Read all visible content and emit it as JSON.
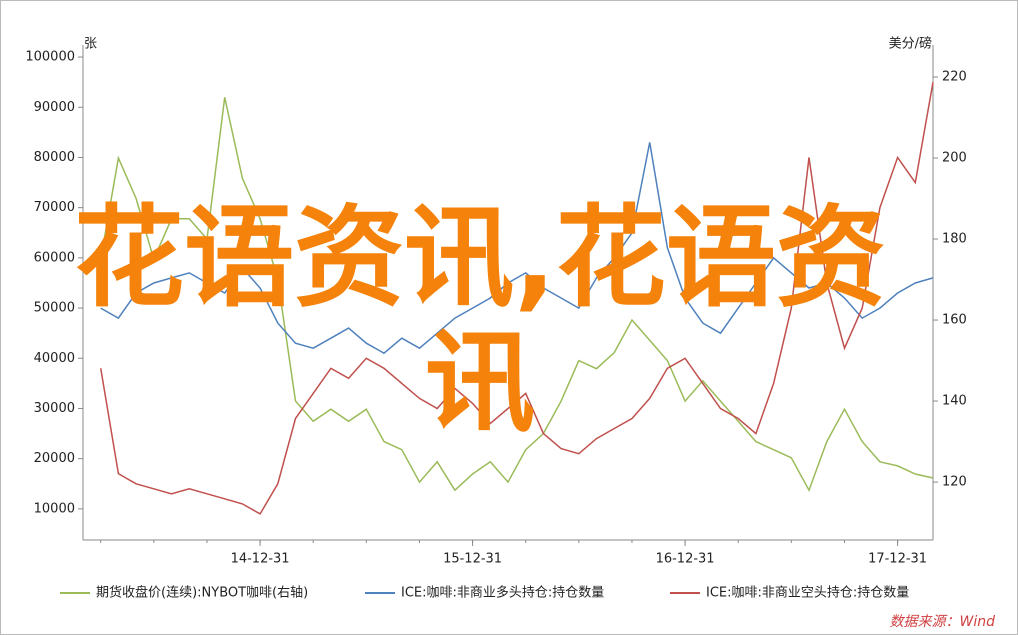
{
  "chart_data": {
    "type": "line",
    "watermark": "花语资讯,花语资讯",
    "y_label": "张",
    "y2_label": "美分/磅",
    "source": "数据来源：Wind",
    "categories": [
      null,
      null,
      null,
      null,
      null,
      null,
      null,
      null,
      null,
      "14-12-31",
      null,
      null,
      null,
      null,
      null,
      null,
      null,
      null,
      null,
      null,
      null,
      "15-12-31",
      null,
      null,
      null,
      null,
      null,
      null,
      null,
      null,
      null,
      null,
      null,
      "16-12-31",
      null,
      null,
      null,
      null,
      null,
      null,
      null,
      null,
      null,
      null,
      null,
      "17-12-31",
      null,
      null
    ],
    "ylim": [
      3800,
      102400
    ],
    "yticks": [
      10000,
      20000,
      30000,
      40000,
      50000,
      60000,
      70000,
      80000,
      90000,
      100000
    ],
    "y2lim": [
      105.7,
      227.9
    ],
    "y2ticks": [
      120,
      140,
      160,
      180,
      200,
      220
    ],
    "series": [
      {
        "name": "期货收盘价(连续):NYBOT咖啡(右轴)",
        "color": "#9bbb59",
        "axis": "y2",
        "values": [
          175,
          200,
          190,
          175,
          185,
          185,
          180,
          215,
          195,
          185,
          170,
          140,
          135,
          138,
          135,
          138,
          130,
          128,
          120,
          125,
          118,
          122,
          125,
          120,
          128,
          132,
          140,
          150,
          148,
          152,
          160,
          155,
          150,
          140,
          145,
          140,
          135,
          130,
          128,
          126,
          118,
          130,
          138,
          130,
          125,
          124,
          122,
          121
        ]
      },
      {
        "name": "ICE:咖啡:非商业多头持仓:持仓数量",
        "color": "#4f81bd",
        "values": [
          50000,
          48000,
          53000,
          55000,
          56000,
          57000,
          55000,
          53000,
          58000,
          54000,
          47000,
          43000,
          42000,
          44000,
          46000,
          43000,
          41000,
          44000,
          42000,
          45000,
          48000,
          50000,
          52000,
          55000,
          57000,
          54000,
          52000,
          50000,
          56000,
          60000,
          65000,
          83000,
          62000,
          52000,
          47000,
          45000,
          50000,
          55000,
          60000,
          57000,
          54000,
          55000,
          52000,
          48000,
          50000,
          53000,
          55000,
          56000
        ]
      },
      {
        "name": "ICE:咖啡:非商业空头持仓:持仓数量",
        "color": "#c0504d",
        "values": [
          38000,
          17000,
          15000,
          14000,
          13000,
          14000,
          13000,
          12000,
          11000,
          9000,
          15000,
          28000,
          33000,
          38000,
          36000,
          40000,
          38000,
          35000,
          32000,
          30000,
          34000,
          31000,
          27000,
          30000,
          33000,
          25000,
          22000,
          21000,
          24000,
          26000,
          28000,
          32000,
          38000,
          40000,
          35000,
          30000,
          28000,
          25000,
          35000,
          50000,
          80000,
          55000,
          42000,
          50000,
          70000,
          80000,
          75000,
          95000
        ]
      }
    ]
  }
}
